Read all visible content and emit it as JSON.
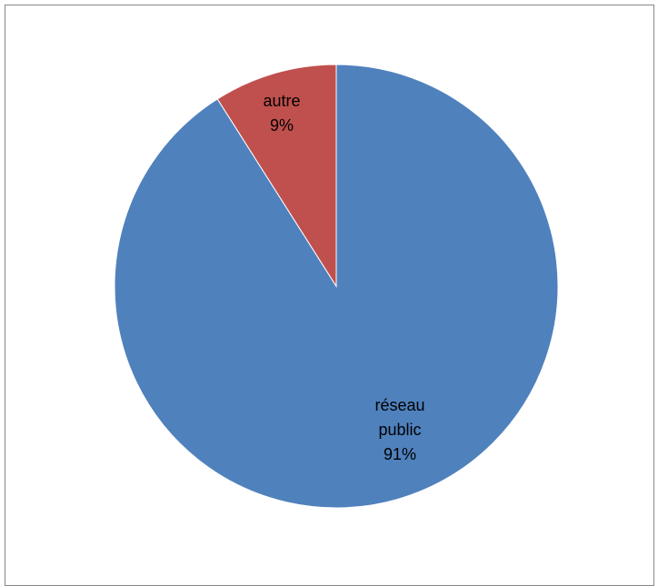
{
  "chart_data": {
    "type": "pie",
    "title": "",
    "slices": [
      {
        "label": "réseau public",
        "label_lines": [
          "réseau",
          "public"
        ],
        "value": 91,
        "value_text": "91%",
        "color": "#4f81bd"
      },
      {
        "label": "autre",
        "label_lines": [
          "autre"
        ],
        "value": 9,
        "value_text": "9%",
        "color": "#c0504d"
      }
    ],
    "legend": "none",
    "slice_border_color": "#ffffff"
  }
}
